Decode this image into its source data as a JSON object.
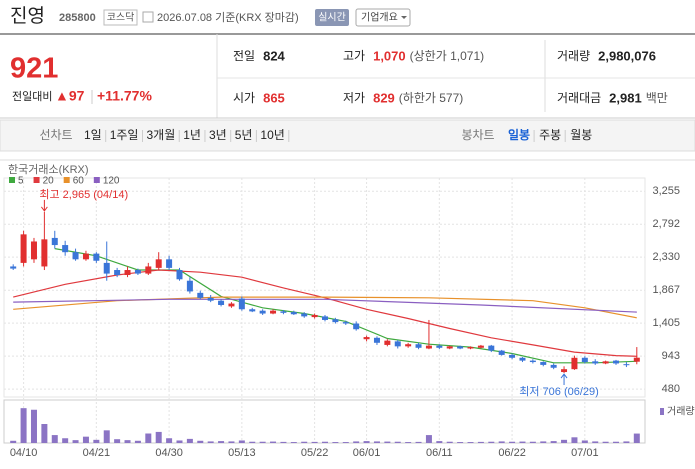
{
  "header": {
    "name": "진영",
    "code": "285800",
    "market": "코스닥",
    "date_text": "2026.07.08 기준(KRX 장마감)",
    "realtime": "실시간",
    "company": "기업개요"
  },
  "quote": {
    "price": "921",
    "change_label": "전일대비",
    "change": "▲97",
    "change_rate": "+11.77%",
    "color": "#e12f2f",
    "stats": [
      {
        "label": "전일",
        "value": "824"
      },
      {
        "label": "고가",
        "value": "1,070",
        "note": "(상한가 1,071)",
        "color": "#e12f2f"
      },
      {
        "label": "거래량",
        "value": "2,980,076"
      },
      {
        "label": "시가",
        "value": "865",
        "color": "#e12f2f"
      },
      {
        "label": "저가",
        "value": "829",
        "note": "(하한가 577)",
        "color": "#e12f2f"
      },
      {
        "label": "거래대금",
        "value": "2,981",
        "note": "백만"
      }
    ]
  },
  "tabs": {
    "line_label": "선차트",
    "line_items": [
      "1일",
      "1주일",
      "3개월",
      "1년",
      "3년",
      "5년",
      "10년"
    ],
    "candle_label": "봉차트",
    "candle_items": [
      "일봉",
      "주봉",
      "월봉"
    ],
    "active": 0
  },
  "chart_data": {
    "type": "candlestick",
    "source": "한국거래소(KRX)",
    "categories": [
      "04/09",
      "04/10",
      "04/13",
      "04/14",
      "04/15",
      "04/16",
      "04/17",
      "04/20",
      "04/21",
      "04/22",
      "04/23",
      "04/24",
      "04/27",
      "04/28",
      "04/29",
      "04/30",
      "05/04",
      "05/06",
      "05/07",
      "05/08",
      "05/11",
      "05/12",
      "05/13",
      "05/14",
      "05/15",
      "05/18",
      "05/19",
      "05/20",
      "05/21",
      "05/22",
      "05/26",
      "05/27",
      "05/28",
      "05/29",
      "06/01",
      "06/02",
      "06/04",
      "06/05",
      "06/08",
      "06/09",
      "06/10",
      "06/11",
      "06/12",
      "06/15",
      "06/16",
      "06/17",
      "06/18",
      "06/19",
      "06/22",
      "06/23",
      "06/24",
      "06/25",
      "06/26",
      "06/29",
      "06/30",
      "07/01",
      "07/02",
      "07/03",
      "07/06",
      "07/07",
      "07/08"
    ],
    "xticks": [
      "04/10",
      "04/21",
      "04/30",
      "05/13",
      "05/22",
      "06/01",
      "06/11",
      "06/22",
      "07/01"
    ],
    "open": [
      2200,
      2250,
      2300,
      2200,
      2600,
      2500,
      2400,
      2300,
      2380,
      2250,
      2150,
      2080,
      2150,
      2100,
      2180,
      2300,
      2150,
      2000,
      1830,
      1760,
      1720,
      1640,
      1750,
      1600,
      1580,
      1540,
      1570,
      1560,
      1540,
      1490,
      1500,
      1460,
      1420,
      1400,
      1180,
      1200,
      1100,
      1150,
      1080,
      1110,
      1050,
      1090,
      1050,
      1080,
      1050,
      1060,
      1090,
      1020,
      960,
      920,
      880,
      860,
      820,
      720,
      760,
      920,
      870,
      840,
      880,
      830,
      865
    ],
    "high": [
      2230,
      2700,
      2600,
      2965,
      2700,
      2560,
      2450,
      2420,
      2400,
      2550,
      2180,
      2200,
      2170,
      2250,
      2400,
      2350,
      2180,
      2050,
      1860,
      1800,
      1740,
      1700,
      1780,
      1620,
      1600,
      1600,
      1590,
      1580,
      1560,
      1540,
      1520,
      1480,
      1440,
      1430,
      1230,
      1220,
      1180,
      1170,
      1130,
      1130,
      1450,
      1110,
      1090,
      1090,
      1080,
      1100,
      1100,
      1030,
      980,
      930,
      900,
      870,
      840,
      800,
      950,
      940,
      900,
      880,
      890,
      860,
      1070
    ],
    "low": [
      2150,
      2200,
      2250,
      2150,
      2450,
      2350,
      2280,
      2280,
      2250,
      2000,
      2050,
      2050,
      2080,
      2080,
      2150,
      2150,
      2000,
      1820,
      1740,
      1700,
      1640,
      1620,
      1580,
      1560,
      1520,
      1530,
      1530,
      1520,
      1480,
      1470,
      1430,
      1400,
      1380,
      1300,
      1150,
      1100,
      1080,
      1050,
      1060,
      1040,
      1040,
      1040,
      1040,
      1040,
      1040,
      1050,
      1000,
      950,
      900,
      860,
      840,
      800,
      760,
      706,
      750,
      840,
      820,
      830,
      820,
      790,
      829
    ],
    "close": [
      2170,
      2650,
      2550,
      2580,
      2500,
      2400,
      2300,
      2380,
      2280,
      2100,
      2080,
      2150,
      2100,
      2200,
      2300,
      2180,
      2020,
      1850,
      1760,
      1720,
      1660,
      1680,
      1600,
      1570,
      1540,
      1580,
      1550,
      1530,
      1500,
      1520,
      1450,
      1420,
      1400,
      1320,
      1210,
      1130,
      1160,
      1080,
      1110,
      1060,
      1090,
      1060,
      1080,
      1050,
      1070,
      1090,
      1020,
      960,
      920,
      880,
      860,
      820,
      780,
      760,
      920,
      860,
      840,
      870,
      840,
      824,
      921
    ],
    "volume": [
      700000,
      11000000,
      10500000,
      6000000,
      2500000,
      1500000,
      900000,
      2000000,
      1000000,
      4000000,
      1200000,
      900000,
      700000,
      3000000,
      3500000,
      1500000,
      800000,
      1300000,
      700000,
      500000,
      600000,
      500000,
      800000,
      400000,
      400000,
      450000,
      350000,
      300000,
      400000,
      350000,
      400000,
      300000,
      300000,
      500000,
      600000,
      500000,
      450000,
      400000,
      300000,
      350000,
      2500000,
      600000,
      400000,
      300000,
      300000,
      350000,
      400000,
      500000,
      400000,
      450000,
      400000,
      500000,
      600000,
      1000000,
      1800000,
      800000,
      500000,
      400000,
      400000,
      500000,
      2980076
    ],
    "volume_label": "거래량",
    "volume_color": "#8b74c4",
    "volume_lim": [
      0,
      12000000
    ],
    "up_color": "#e12f2f",
    "down_color": "#3a75d8",
    "moving_averages": [
      {
        "name": "5",
        "color": "#3fa93f",
        "x": [
          4,
          8,
          12,
          16,
          20,
          24,
          28,
          32,
          36,
          40,
          44,
          48,
          52,
          56,
          60
        ],
        "values": [
          2450,
          2350,
          2150,
          2150,
          1780,
          1620,
          1540,
          1430,
          1190,
          1110,
          1070,
          980,
          850,
          850,
          870
        ]
      },
      {
        "name": "20",
        "color": "#e0393e",
        "x": [
          0,
          5,
          10,
          14,
          18,
          22,
          26,
          30,
          34,
          38,
          42,
          46,
          50,
          54,
          58,
          60
        ],
        "values": [
          1770,
          1950,
          2080,
          2150,
          2120,
          2050,
          1900,
          1760,
          1600,
          1470,
          1330,
          1200,
          1100,
          1000,
          950,
          940
        ]
      },
      {
        "name": "60",
        "color": "#e8912b",
        "x": [
          0,
          10,
          20,
          30,
          40,
          50,
          55,
          60
        ],
        "values": [
          1600,
          1720,
          1770,
          1770,
          1760,
          1720,
          1620,
          1480
        ]
      },
      {
        "name": "120",
        "color": "#8a5fc1",
        "x": [
          0,
          15,
          30,
          45,
          60
        ],
        "values": [
          1700,
          1740,
          1740,
          1660,
          1560
        ]
      }
    ],
    "ylim": [
      370,
      3440
    ],
    "yticks": [
      {
        "value": 3255,
        "label": "3,255"
      },
      {
        "value": 2792,
        "label": "2,792"
      },
      {
        "value": 2330,
        "label": "2,330"
      },
      {
        "value": 1867,
        "label": "1,867"
      },
      {
        "value": 1405,
        "label": "1,405"
      },
      943,
      480
    ],
    "grid": true,
    "annotations": [
      {
        "text": "최고 2,965 (04/14)",
        "category": "04/14",
        "value": 2965,
        "color": "#e12f2f",
        "side": "top"
      },
      {
        "text": "최저 706 (06/29)",
        "category": "06/29",
        "value": 706,
        "color": "#3a75d8",
        "side": "bottom"
      }
    ]
  }
}
